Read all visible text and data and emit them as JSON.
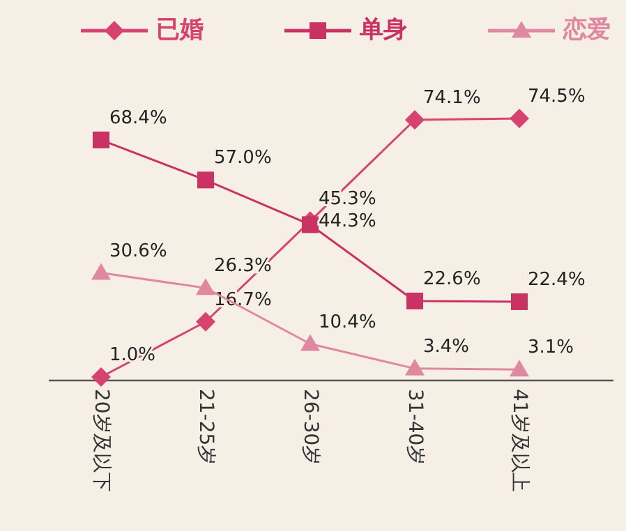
{
  "chart_data": {
    "type": "line",
    "categories": [
      "20岁及以下",
      "21-25岁",
      "26-30岁",
      "31-40岁",
      "41岁及以上"
    ],
    "series": [
      {
        "name": "已婚",
        "color": "#d6436e",
        "marker": "diamond",
        "values": [
          1.0,
          16.7,
          45.3,
          74.1,
          74.5
        ],
        "value_labels": [
          "1.0%",
          "16.7%",
          "45.3%",
          "74.1%",
          "74.5%"
        ]
      },
      {
        "name": "单身",
        "color": "#c93262",
        "marker": "square",
        "values": [
          68.4,
          57.0,
          44.3,
          22.6,
          22.4
        ],
        "value_labels": [
          "68.4%",
          "57.0%",
          "44.3%",
          "22.6%",
          "22.4%"
        ]
      },
      {
        "name": "恋爱",
        "color": "#e088a0",
        "marker": "triangle",
        "values": [
          30.6,
          26.3,
          10.4,
          3.4,
          3.1
        ],
        "value_labels": [
          "30.6%",
          "26.3%",
          "10.4%",
          "3.4%",
          "3.1%"
        ]
      }
    ],
    "legend": "top"
  }
}
